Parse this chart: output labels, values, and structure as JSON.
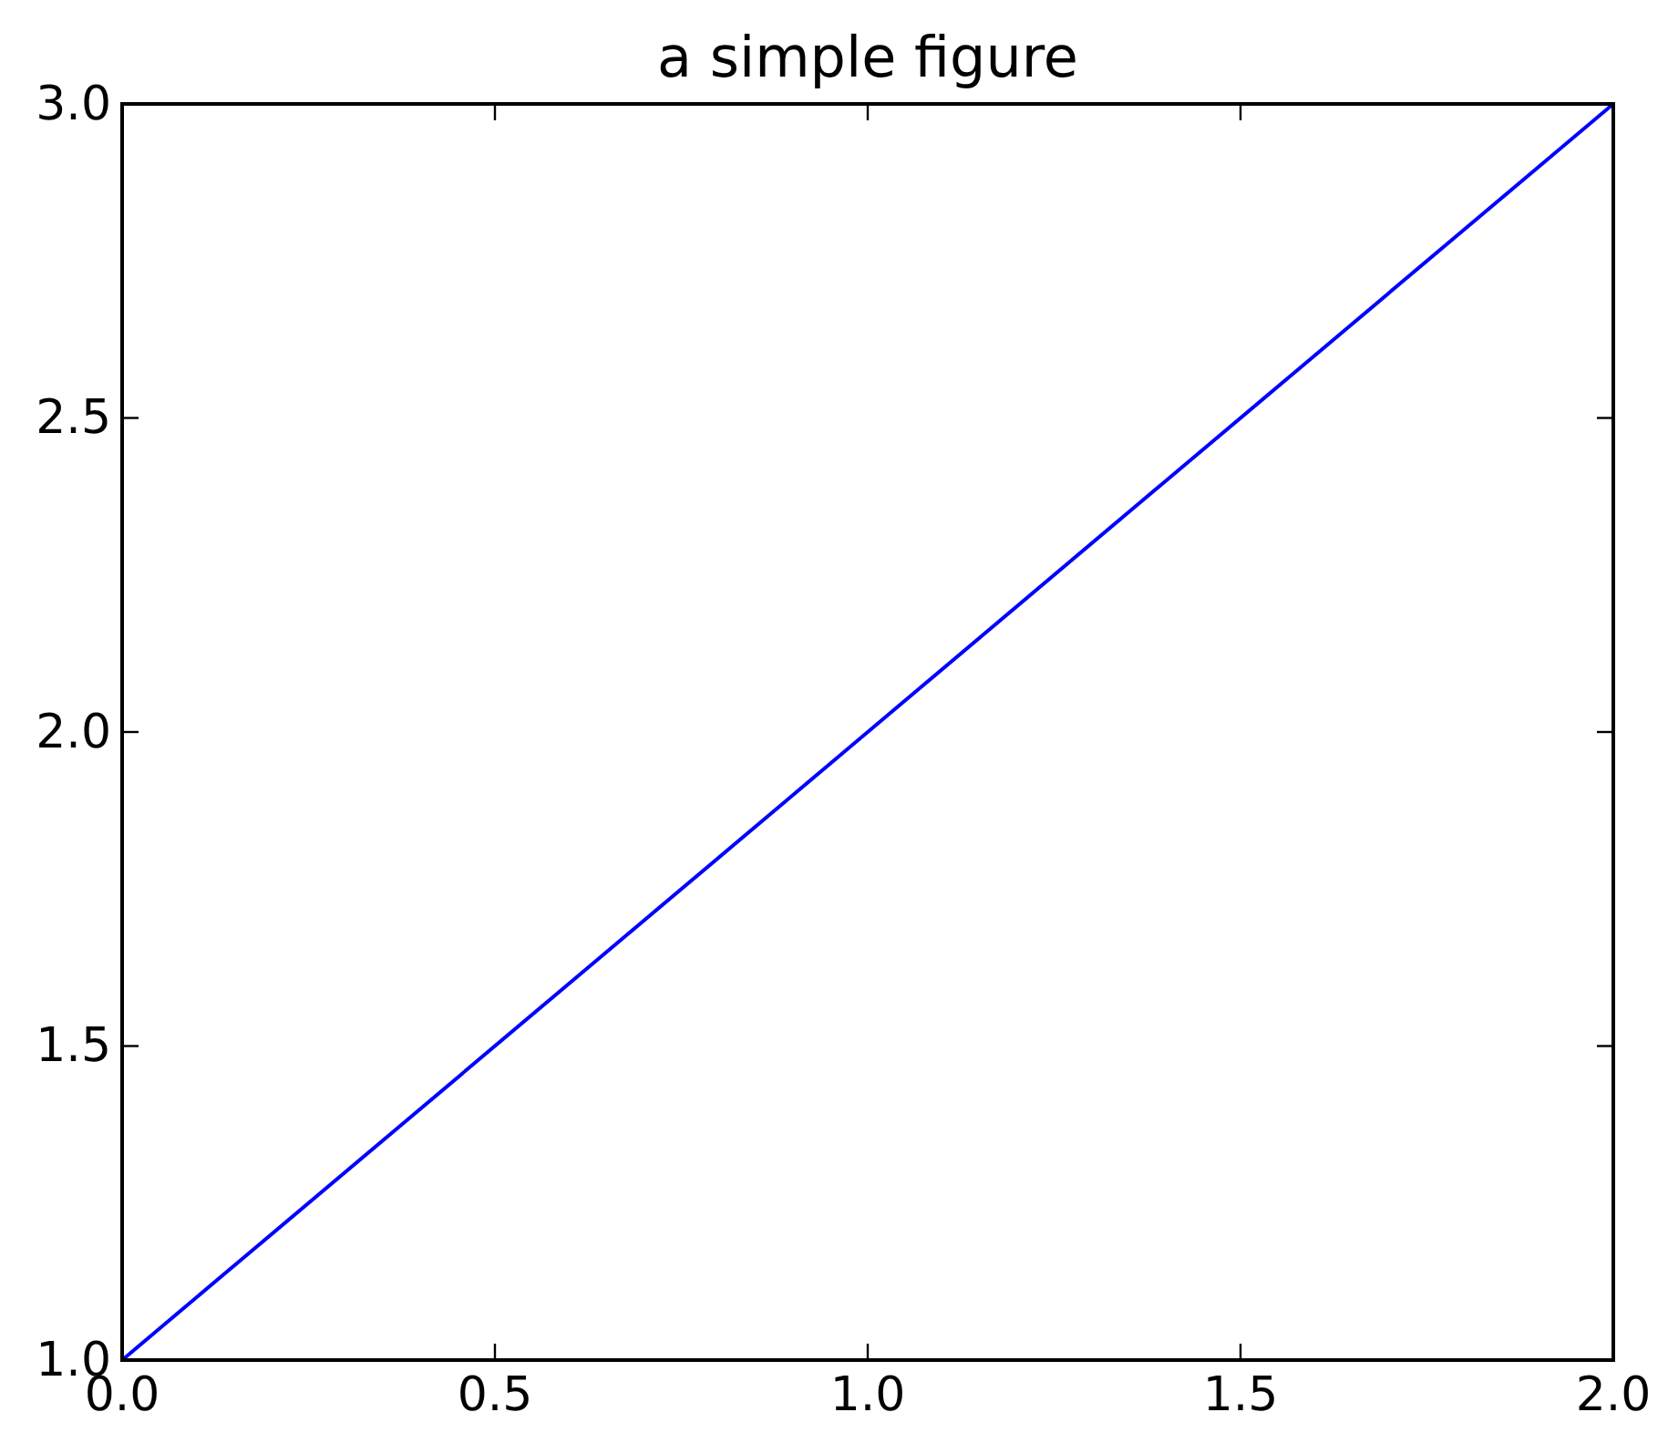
{
  "chart_data": {
    "type": "line",
    "title": "a simple figure",
    "x": [
      0,
      1,
      2
    ],
    "series": [
      {
        "color": "#0000ff",
        "values": [
          1,
          2,
          3
        ]
      }
    ],
    "xlim": [
      0,
      2
    ],
    "ylim": [
      1,
      3
    ],
    "xticks": [
      {
        "value": 0,
        "label": "0.0"
      },
      {
        "value": 0.5,
        "label": "0.5"
      },
      {
        "value": 1,
        "label": "1.0"
      },
      {
        "value": 1.5,
        "label": "1.5"
      },
      {
        "value": 2,
        "label": "2.0"
      }
    ],
    "yticks": [
      {
        "value": 1,
        "label": "1.0"
      },
      {
        "value": 1.5,
        "label": "1.5"
      },
      {
        "value": 2,
        "label": "2.0"
      },
      {
        "value": 2.5,
        "label": "2.5"
      },
      {
        "value": 3,
        "label": "3.0"
      }
    ],
    "marker": "none",
    "line_style": "solid"
  }
}
